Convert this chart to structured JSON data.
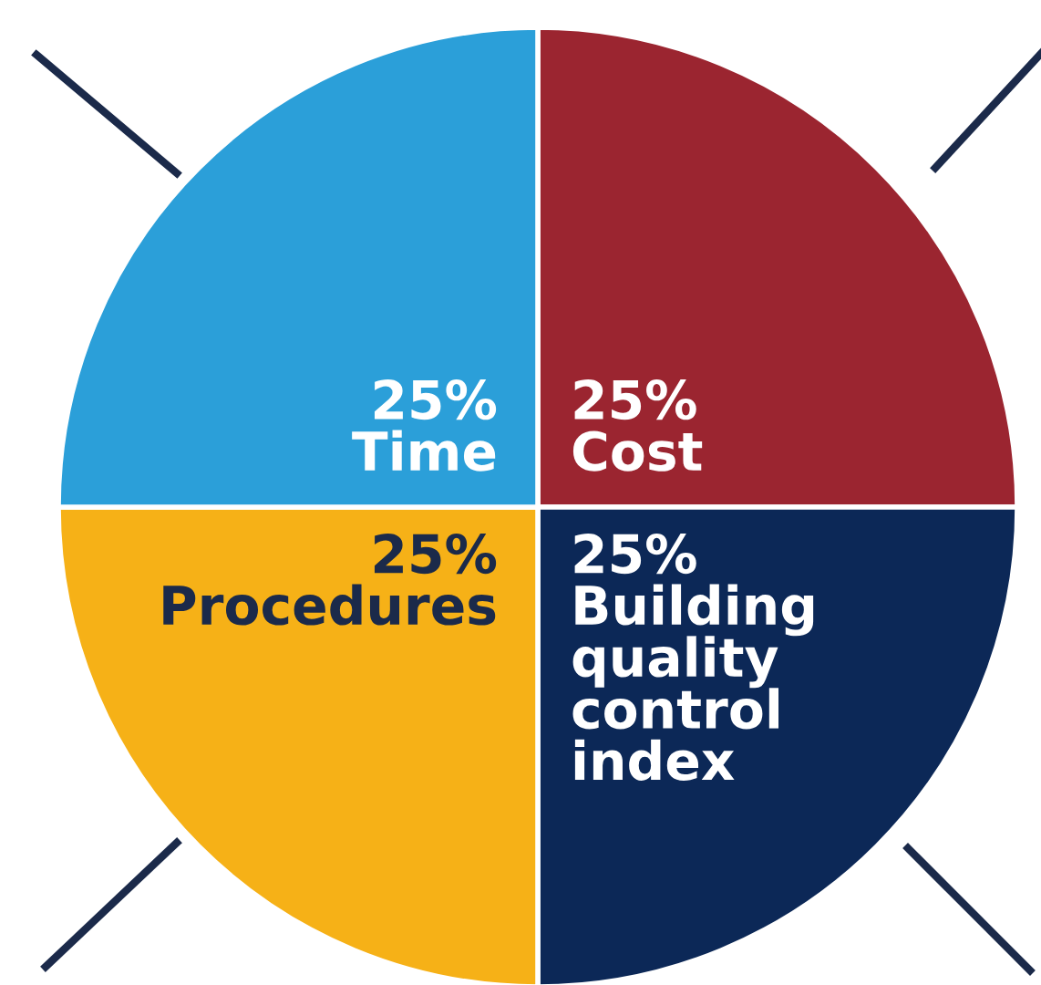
{
  "chart_data": {
    "type": "pie",
    "categories": [
      "Cost",
      "Building quality control index",
      "Procedures",
      "Time"
    ],
    "values": [
      25,
      25,
      25,
      25
    ],
    "value_labels": [
      "25%",
      "25%",
      "25%",
      "25%"
    ],
    "colors": [
      "#9b2530",
      "#0c2857",
      "#f6b117",
      "#2b9fd9"
    ]
  }
}
